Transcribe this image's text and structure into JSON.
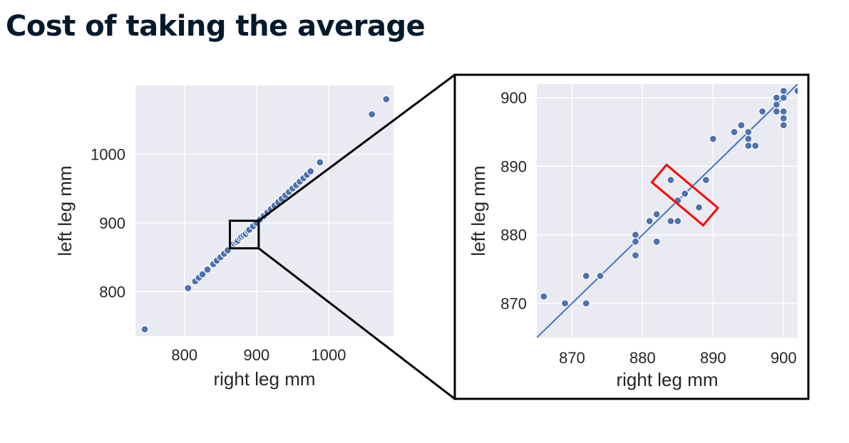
{
  "slide": {
    "title": "Cost of taking the average"
  },
  "style": {
    "plot_background": "#eaeaf2",
    "grid_color": "#ffffff",
    "point_color": "#4c72b0",
    "line_color": "#4472c4",
    "highlight_color": "#ff0000",
    "frame_color": "#000000"
  },
  "chart_data": [
    {
      "type": "scatter",
      "title": "",
      "xlabel": "right leg mm",
      "ylabel": "left leg mm",
      "xlim": [
        732,
        1090
      ],
      "ylim": [
        735,
        1100
      ],
      "xticks": [
        800,
        900,
        1000
      ],
      "yticks": [
        800,
        900,
        1000
      ],
      "grid": true,
      "series": [
        {
          "x": [
            745,
            805,
            815,
            820,
            825,
            832,
            840,
            845,
            850,
            855,
            860,
            866,
            869,
            872,
            874,
            877,
            879,
            882,
            885,
            888,
            890,
            895,
            900,
            905,
            910,
            915,
            920,
            925,
            930,
            935,
            940,
            945,
            950,
            955,
            960,
            965,
            970,
            975,
            988,
            1060,
            1080
          ],
          "y": [
            745,
            805,
            815,
            820,
            825,
            832,
            840,
            845,
            850,
            855,
            860,
            866,
            870,
            872,
            874,
            878,
            880,
            882,
            884,
            888,
            890,
            895,
            900,
            905,
            910,
            915,
            920,
            925,
            930,
            935,
            940,
            945,
            950,
            955,
            960,
            965,
            970,
            975,
            988,
            1058,
            1080
          ]
        }
      ]
    },
    {
      "type": "scatter",
      "title": "",
      "xlabel": "right leg mm",
      "ylabel": "left leg mm",
      "xlim": [
        865,
        902
      ],
      "ylim": [
        865,
        902
      ],
      "xticks": [
        870,
        880,
        890,
        900
      ],
      "yticks": [
        870,
        880,
        890,
        900
      ],
      "grid": true,
      "fit_line": {
        "x": [
          865,
          902
        ],
        "y": [
          865,
          902
        ]
      },
      "series": [
        {
          "x": [
            866,
            869,
            872,
            872,
            874,
            879,
            879,
            879,
            881,
            882,
            882,
            884,
            884,
            885,
            885,
            886,
            888,
            889,
            890,
            893,
            894,
            895,
            895,
            895,
            896,
            897,
            899,
            899,
            899,
            900,
            900,
            900,
            900,
            900,
            902
          ],
          "y": [
            871,
            870,
            874,
            870,
            874,
            880,
            879,
            877,
            882,
            883,
            879,
            882,
            888,
            885,
            882,
            886,
            884,
            888,
            894,
            895,
            896,
            895,
            894,
            893,
            893,
            898,
            900,
            899,
            898,
            901,
            900,
            898,
            897,
            896,
            901
          ]
        }
      ]
    }
  ]
}
